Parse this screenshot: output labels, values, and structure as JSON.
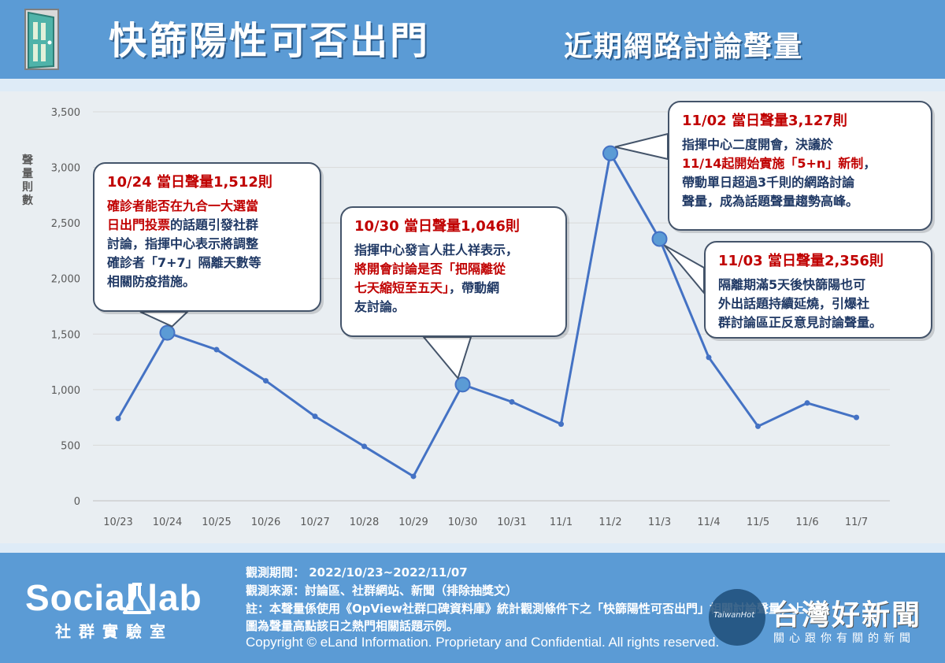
{
  "header": {
    "title_main": "快篩陽性可否出門",
    "title_sub": "近期網路討論聲量"
  },
  "colors": {
    "header_bg": "#5b9bd5",
    "line": "#4472c4",
    "point_fill": "#5b9bd5",
    "highlight": "#c00000",
    "text_dark": "#1f3864"
  },
  "icons": {
    "header": "door-icon",
    "logo": "flask-icon"
  },
  "chart_data": {
    "type": "line",
    "title": "",
    "xlabel": "",
    "ylabel": "聲量則數",
    "ylim": [
      0,
      3500
    ],
    "yticks": [
      0,
      500,
      1000,
      1500,
      2000,
      2500,
      3000,
      3500
    ],
    "ytick_labels": [
      "0",
      "500",
      "1,000",
      "1,500",
      "2,000",
      "2,500",
      "3,000",
      "3,500"
    ],
    "grid": true,
    "categories": [
      "10/23",
      "10/24",
      "10/25",
      "10/26",
      "10/27",
      "10/28",
      "10/29",
      "10/30",
      "10/31",
      "11/1",
      "11/2",
      "11/3",
      "11/4",
      "11/5",
      "11/6",
      "11/7"
    ],
    "values": [
      740,
      1512,
      1360,
      1080,
      760,
      490,
      220,
      1046,
      890,
      690,
      3127,
      2356,
      1290,
      670,
      880,
      750
    ],
    "highlighted_points": [
      "10/24",
      "10/30",
      "11/2",
      "11/3"
    ],
    "annotations": [
      {
        "point": "10/24",
        "head": "10/24 當日聲量1,512則",
        "lines": [
          {
            "text": "確診者能否在九合一大選當",
            "highlight": true
          },
          {
            "text": "日出門投票",
            "highlight": true,
            "rest": "的話題引發社群"
          },
          {
            "text": "討論，指揮中心表示將調整",
            "highlight": false
          },
          {
            "text": "確診者「7+7」隔離天數等",
            "highlight": false
          },
          {
            "text": "相關防疫措施。",
            "highlight": false
          }
        ]
      },
      {
        "point": "10/30",
        "head": "10/30 當日聲量1,046則",
        "lines": [
          {
            "text": "指揮中心發言人莊人祥表示，",
            "highlight": false
          },
          {
            "text": "將開會討論是否「把隔離從",
            "highlight": true
          },
          {
            "text": "七天縮短至五天」",
            "highlight": true,
            "rest": "，帶動網"
          },
          {
            "text": "友討論。",
            "highlight": false
          }
        ]
      },
      {
        "point": "11/2",
        "head": "11/02 當日聲量3,127則",
        "lines": [
          {
            "text": "指揮中心二度開會，決議於",
            "highlight": false
          },
          {
            "text": "11/14起開始實施「5+n」新制",
            "highlight": true,
            "rest": "，"
          },
          {
            "text": "帶動單日超過3千則的網路討論",
            "highlight": false
          },
          {
            "text": "聲量，成為話題聲量趨勢高峰。",
            "highlight": false
          }
        ]
      },
      {
        "point": "11/3",
        "head": "11/03 當日聲量2,356則",
        "lines": [
          {
            "text": "隔離期滿5天後快篩陽也可",
            "highlight": false
          },
          {
            "text": "外出",
            "highlight": false,
            "rest": "話題持續延燒，引爆社"
          },
          {
            "text": "群討論區正反意見討論聲量。",
            "highlight": false
          }
        ]
      }
    ]
  },
  "footer": {
    "logo_text": "Social lab",
    "logo_sub": "社群實驗室",
    "notes": [
      "觀測期間： 2022/10/23~2022/11/07",
      "觀測來源：討論區、社群網站、新聞（排除抽獎文）",
      "註：本聲量係使用《OpView社群口碑資料庫》統計觀測條件下之「快篩陽性可否出門」相關討論聲量，上",
      "圖為聲量高點該日之熱門相關話題示例。"
    ],
    "copyright": "Copyright © eLand Information. Proprietary and Confidential. All rights reserved.",
    "watermark_badge": "TaiwanHot",
    "watermark_main": "台灣好新聞",
    "watermark_sub": "關心跟你有關的新聞"
  }
}
